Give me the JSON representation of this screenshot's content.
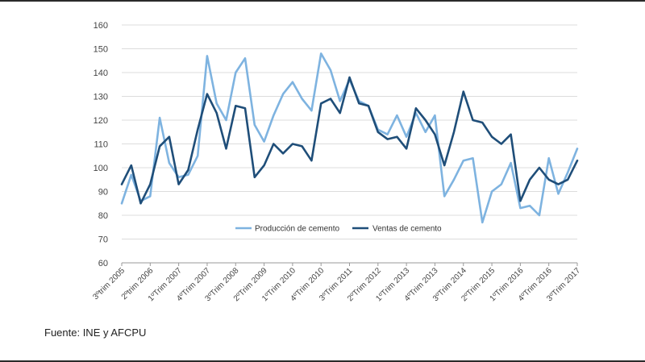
{
  "source": "Fuente: INE y AFCPU",
  "chart_data": {
    "type": "line",
    "title": "",
    "xlabel": "",
    "ylabel": "",
    "ylim": [
      60,
      160
    ],
    "yticks": [
      60,
      70,
      80,
      90,
      100,
      110,
      120,
      130,
      140,
      150,
      160
    ],
    "grid": true,
    "legend_position": "center-right",
    "x_tick_labels": [
      "3ºtrim 2005",
      "2ºtrim 2006",
      "1ºTrim 2007",
      "4ºTrim 2007",
      "3ºTrim 2008",
      "2ºTrim 2009",
      "1ºTrim 2010",
      "4ºTrim 2010",
      "3ºTrim 2011",
      "2ºTrim 2012",
      "1ºTrim 2013",
      "4ºTrim 2013",
      "3ºTrim 2014",
      "2ºTrim 2015",
      "1ºTrim 2016",
      "4ºTrim 2016",
      "3ºTrim 2017"
    ],
    "series": [
      {
        "name": "Producción de cemento",
        "color": "#7eb3e0",
        "values": [
          85,
          97,
          86,
          88,
          121,
          102,
          96,
          97,
          105,
          147,
          127,
          120,
          140,
          146,
          118,
          111,
          122,
          131,
          136,
          129,
          124,
          148,
          141,
          128,
          137,
          128,
          126,
          116,
          114,
          122,
          113,
          123,
          115,
          122,
          88,
          95,
          103,
          104,
          77,
          90,
          93,
          102,
          83,
          84,
          80,
          104,
          89,
          98,
          108
        ]
      },
      {
        "name": "Ventas de cemento",
        "color": "#1f4e79",
        "values": [
          93,
          101,
          85,
          93,
          109,
          113,
          93,
          99,
          116,
          131,
          123,
          108,
          126,
          125,
          96,
          101,
          110,
          106,
          110,
          109,
          103,
          127,
          129,
          123,
          138,
          127,
          126,
          115,
          112,
          113,
          108,
          125,
          120,
          114,
          101,
          115,
          132,
          120,
          119,
          113,
          110,
          114,
          86,
          95,
          100,
          95,
          93,
          95,
          103
        ]
      }
    ]
  }
}
